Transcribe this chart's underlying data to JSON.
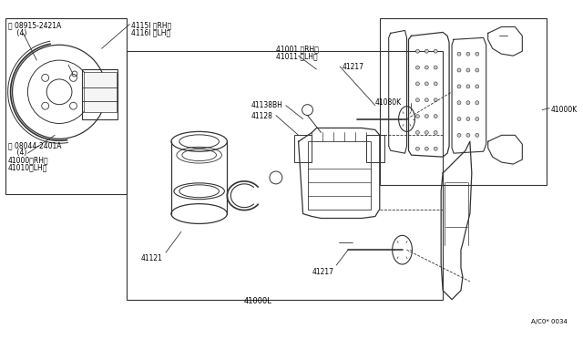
{
  "background_color": "#ffffff",
  "line_color": "#333333",
  "text_color": "#000000",
  "fig_width": 6.4,
  "fig_height": 3.72,
  "dpi": 100,
  "ref_code": "A/C0* 0034",
  "label_W": "Ⓦ 08915-2421A",
  "label_W2": "    (4)",
  "label_B": "Ⓑ 08044-2401A",
  "label_B2": "    (4)",
  "label_B3": "41000〈RH〉",
  "label_B4": "41010〈LH〉",
  "label_4115": "4115l 〈RH〉",
  "label_4116": "4116l 〈LH〉",
  "label_41001": "41001 〈RH〉",
  "label_41011": "41011 〈LH〉",
  "label_41217a": "41217",
  "label_41138bh": "41138BH",
  "label_41128": "41128",
  "label_41121": "41121",
  "label_41217b": "41217",
  "label_41000L": "41000L",
  "label_41080K": "41080K",
  "label_41000K": "41000K"
}
